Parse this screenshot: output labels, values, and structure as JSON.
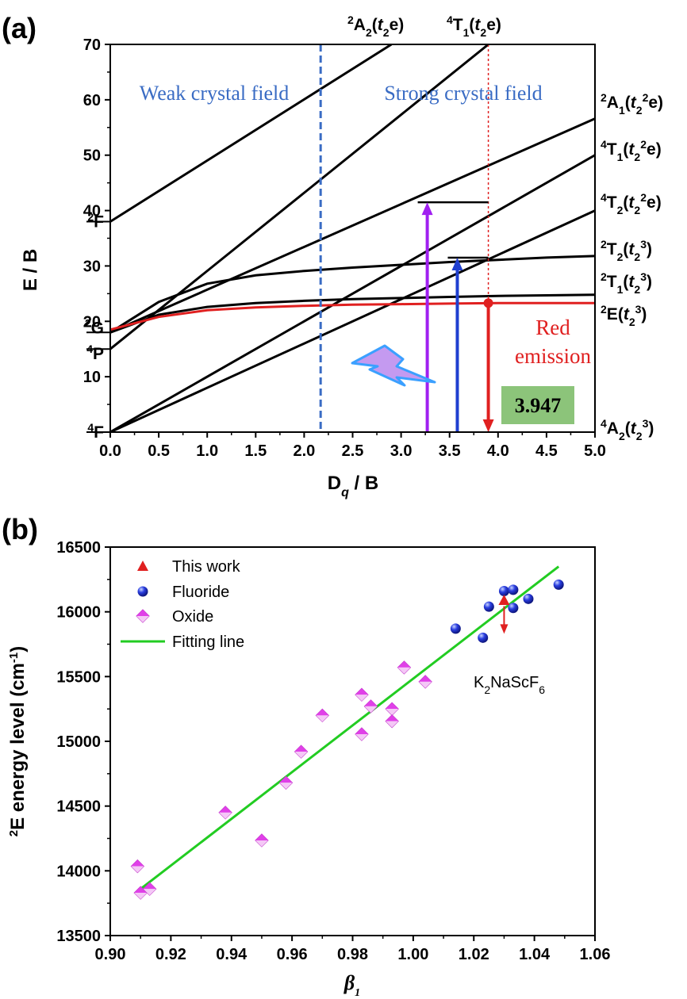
{
  "chart_data": [
    {
      "panel": "(a)",
      "type": "line",
      "title": "",
      "xlabel": "D",
      "xlabel_sub": "q",
      "xlabel_rest": " / B",
      "ylabel": "E / B",
      "xlim": [
        0,
        5
      ],
      "ylim": [
        0,
        70
      ],
      "x_ticks": [
        "0.0",
        "0.5",
        "1.0",
        "1.5",
        "2.0",
        "2.5",
        "3.0",
        "3.5",
        "4.0",
        "4.5",
        "5.0"
      ],
      "y_ticks": [
        "10",
        "20",
        "30",
        "40",
        "50",
        "60",
        "70"
      ],
      "free_ion_terms": [
        {
          "pre": "4",
          "name": "F",
          "y": 0
        },
        {
          "pre": "4",
          "name": "P",
          "y": 15
        },
        {
          "pre": "2",
          "name": "G",
          "y": 18
        },
        {
          "pre": "2",
          "name": "F",
          "y": 38
        }
      ],
      "series": [
        {
          "name": "2A2(t2e)",
          "x": [
            0,
            2.9
          ],
          "y": [
            38,
            70
          ]
        },
        {
          "name": "4T1(t2e)",
          "x": [
            0,
            3.9
          ],
          "y": [
            15,
            70
          ]
        },
        {
          "name": "4T1(t2^2e) lower",
          "x": [
            0,
            5
          ],
          "y": [
            0,
            50
          ]
        },
        {
          "name": "2A1(t2^2e)",
          "x": [
            0,
            5
          ],
          "y": [
            18,
            56.6
          ]
        },
        {
          "name": "4T2(t2^2e)",
          "x": [
            0,
            5
          ],
          "y": [
            0,
            40
          ]
        },
        {
          "name": "2T2(t2^3)",
          "x": [
            0,
            0.5,
            1,
            1.5,
            2,
            2.5,
            3,
            3.5,
            4,
            4.5,
            5
          ],
          "y": [
            18,
            23.5,
            26.8,
            28.3,
            29.1,
            29.7,
            30.2,
            30.7,
            31.1,
            31.5,
            31.8
          ]
        },
        {
          "name": "2T1(t2^3)",
          "x": [
            0,
            0.5,
            1,
            1.5,
            2,
            2.5,
            3,
            3.5,
            4,
            4.5,
            5
          ],
          "y": [
            18,
            21.2,
            22.6,
            23.3,
            23.7,
            24.0,
            24.2,
            24.4,
            24.6,
            24.7,
            24.8
          ]
        },
        {
          "name": "2E(t2^3)",
          "x": [
            0,
            0.5,
            1,
            1.5,
            2,
            2.5,
            3,
            3.5,
            4,
            4.5,
            5
          ],
          "y": [
            18.5,
            20.8,
            22.0,
            22.5,
            22.8,
            23.0,
            23.1,
            23.2,
            23.3,
            23.3,
            23.3
          ],
          "color": "#e02020"
        }
      ],
      "right_labels": [
        {
          "pre": "2",
          "main": "A",
          "sub": "1",
          "config": "(t",
          "csub": "2",
          "csup": "2",
          "tail": "e)"
        },
        {
          "pre": "4",
          "main": "T",
          "sub": "1",
          "config": "(t",
          "csub": "2",
          "csup": "2",
          "tail": "e)"
        },
        {
          "pre": "4",
          "main": "T",
          "sub": "2",
          "config": "(t",
          "csub": "2",
          "csup": "2",
          "tail": "e)"
        },
        {
          "pre": "2",
          "main": "T",
          "sub": "2",
          "config": "(t",
          "csub": "2",
          "csup": "3",
          "tail": ")"
        },
        {
          "pre": "2",
          "main": "T",
          "sub": "1",
          "config": "(t",
          "csub": "2",
          "csup": "3",
          "tail": ")"
        },
        {
          "pre": "2",
          "main": "E",
          "sub": "",
          "config": "(t",
          "csub": "2",
          "csup": "3",
          "tail": ")"
        },
        {
          "pre": "4",
          "main": "A",
          "sub": "2",
          "config": "(t",
          "csub": "2",
          "csup": "3",
          "tail": ")"
        }
      ],
      "top_labels": [
        {
          "pre": "2",
          "main": "A",
          "sub": "2",
          "config": "(t",
          "csub": "2",
          "tail": "e)"
        },
        {
          "pre": "4",
          "main": "T",
          "sub": "1",
          "config": "(t",
          "csub": "2",
          "tail": "e)"
        }
      ],
      "annotations": {
        "weak_field": "Weak crystal field",
        "strong_field": "Strong crystal field",
        "red_emission_1": "Red",
        "red_emission_2": "emission",
        "dq_value": "3.947",
        "boundary_x": 2.17,
        "dq_x": 3.9,
        "violet_arrow": {
          "x": 3.27,
          "y_top": 41.5
        },
        "blue_arrow": {
          "x": 3.58,
          "y_top": 31.5
        },
        "red_arrow_top": 23.3
      },
      "colors": {
        "boundary": "#3a6cc4",
        "red": "#e02020",
        "violet": "#a020f0",
        "blue": "#1f3fd0",
        "box": "#8cc47a",
        "lightning_fill": "#c49af0",
        "lightning_edge": "#3ba0ff"
      }
    },
    {
      "panel": "(b)",
      "type": "scatter",
      "title": "",
      "xlabel": "β",
      "xlabel_sub": "1",
      "ylabel": "E energy level (cm",
      "ylabel_pre": "2",
      "ylabel_sup": "-1",
      "ylabel_end": ")",
      "xlim": [
        0.9,
        1.06
      ],
      "ylim": [
        13500,
        16500
      ],
      "x_ticks": [
        "0.90",
        "0.92",
        "0.94",
        "0.96",
        "0.98",
        "1.00",
        "1.02",
        "1.04",
        "1.06"
      ],
      "y_ticks": [
        "13500",
        "14000",
        "14500",
        "15000",
        "15500",
        "16000",
        "16500"
      ],
      "legend": [
        "This work",
        "Fluoride",
        "Oxide",
        "Fitting line"
      ],
      "series": [
        {
          "name": "This work",
          "marker": "triangle",
          "color": "#e02020",
          "points": [
            [
              1.03,
              16090
            ]
          ]
        },
        {
          "name": "Fluoride",
          "marker": "sphere",
          "color": "#1e2fd6",
          "points": [
            [
              1.014,
              15870
            ],
            [
              1.023,
              15800
            ],
            [
              1.025,
              16040
            ],
            [
              1.03,
              16160
            ],
            [
              1.033,
              16170
            ],
            [
              1.033,
              16030
            ],
            [
              1.038,
              16100
            ],
            [
              1.048,
              16210
            ]
          ]
        },
        {
          "name": "Oxide",
          "marker": "diamond",
          "color": "#e040e8",
          "points": [
            [
              0.909,
              14035
            ],
            [
              0.91,
              13830
            ],
            [
              0.913,
              13860
            ],
            [
              0.938,
              14450
            ],
            [
              0.95,
              14235
            ],
            [
              0.958,
              14680
            ],
            [
              0.963,
              14920
            ],
            [
              0.97,
              15200
            ],
            [
              0.983,
              15360
            ],
            [
              0.983,
              15055
            ],
            [
              0.986,
              15270
            ],
            [
              0.993,
              15250
            ],
            [
              0.993,
              15155
            ],
            [
              0.997,
              15570
            ],
            [
              1.004,
              15460
            ]
          ]
        },
        {
          "name": "Fitting line",
          "marker": "line",
          "color": "#22cc22",
          "x": [
            0.91,
            1.048
          ],
          "y": [
            13860,
            16350
          ]
        }
      ],
      "annotation": {
        "text": "K",
        "sub1": "2",
        "mid": "NaScF",
        "sub2": "6",
        "arrow_from": [
          1.03,
          16080
        ],
        "arrow_to": [
          1.03,
          15830
        ]
      }
    }
  ]
}
